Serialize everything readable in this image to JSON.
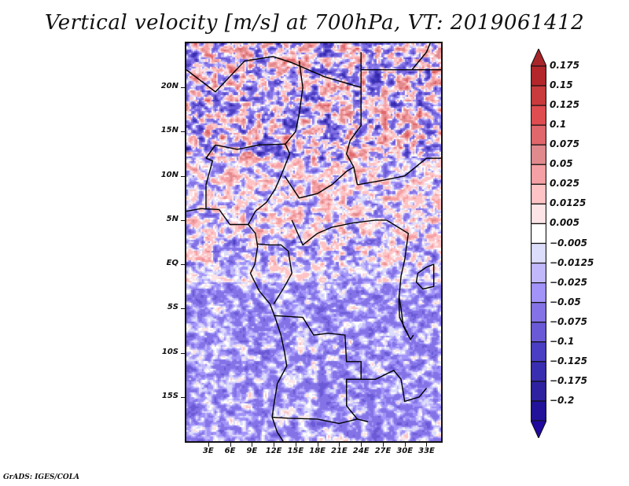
{
  "chart_data": {
    "type": "heatmap",
    "title": "Vertical velocity [m/s] at 700hPa, VT: 2019061412",
    "variable": "Vertical velocity",
    "units": "m/s",
    "level": "700hPa",
    "valid_time": "2019061412",
    "xlabel": "",
    "ylabel": "",
    "x_range_deg": [
      0,
      35
    ],
    "y_range_deg": [
      -20,
      25
    ],
    "x_ticks": [
      {
        "value": 3,
        "label": "3E"
      },
      {
        "value": 6,
        "label": "6E"
      },
      {
        "value": 9,
        "label": "9E"
      },
      {
        "value": 12,
        "label": "12E"
      },
      {
        "value": 15,
        "label": "15E"
      },
      {
        "value": 18,
        "label": "18E"
      },
      {
        "value": 21,
        "label": "21E"
      },
      {
        "value": 24,
        "label": "24E"
      },
      {
        "value": 27,
        "label": "27E"
      },
      {
        "value": 30,
        "label": "30E"
      },
      {
        "value": 33,
        "label": "33E"
      }
    ],
    "y_ticks": [
      {
        "value": 20,
        "label": "20N"
      },
      {
        "value": 15,
        "label": "15N"
      },
      {
        "value": 10,
        "label": "10N"
      },
      {
        "value": 5,
        "label": "5N"
      },
      {
        "value": 0,
        "label": "EQ"
      },
      {
        "value": -5,
        "label": "5S"
      },
      {
        "value": -10,
        "label": "10S"
      },
      {
        "value": -15,
        "label": "15S"
      }
    ],
    "colorbar": {
      "orientation": "vertical",
      "extend": "both",
      "levels": [
        {
          "label": "0.175",
          "color": "#b3262a"
        },
        {
          "label": "0.15",
          "color": "#c93b3c"
        },
        {
          "label": "0.125",
          "color": "#e04d50"
        },
        {
          "label": "0.1",
          "color": "#e0676b"
        },
        {
          "label": "0.075",
          "color": "#e08a8e"
        },
        {
          "label": "0.05",
          "color": "#f5a0a4"
        },
        {
          "label": "0.025",
          "color": "#fdc3c5"
        },
        {
          "label": "0.0125",
          "color": "#fde4e6"
        },
        {
          "label": "0.005",
          "color": "#ffffff"
        },
        {
          "label": "-0.005",
          "color": "#dcdcfb"
        },
        {
          "label": "-0.0125",
          "color": "#c1b8fb"
        },
        {
          "label": "-0.025",
          "color": "#a193f8"
        },
        {
          "label": "-0.05",
          "color": "#8473e6"
        },
        {
          "label": "-0.075",
          "color": "#6b5ad6"
        },
        {
          "label": "-0.1",
          "color": "#4a3ec4"
        },
        {
          "label": "-0.125",
          "color": "#3a2eb0"
        },
        {
          "label": "-0.175",
          "color": "#2e22a0"
        },
        {
          "label": "-0.2",
          "color": "#22139a"
        }
      ],
      "top_arrow_color": "#a8252a",
      "bottom_arrow_color": "#20099e"
    },
    "grid": false,
    "legend_position": "right"
  },
  "footer": "GrADS: IGES/COLA"
}
